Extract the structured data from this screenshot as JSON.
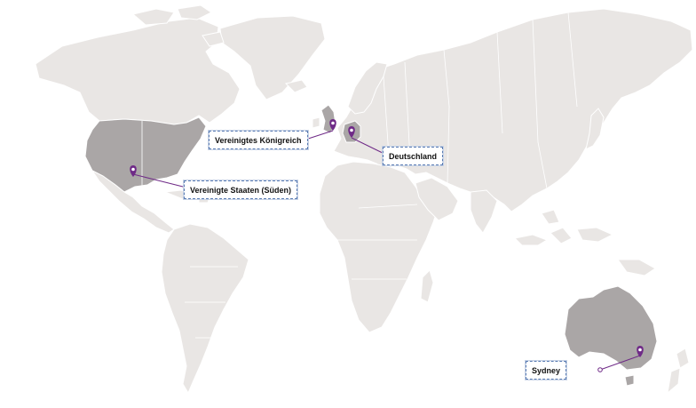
{
  "locations": [
    {
      "id": "uk",
      "label": "Vereinigtes Königreich"
    },
    {
      "id": "de",
      "label": "Deutschland"
    },
    {
      "id": "us",
      "label": "Vereinigte Staaten (Süden)"
    },
    {
      "id": "syd",
      "label": "Sydney"
    }
  ],
  "colors": {
    "land": "#e9e6e4",
    "highlight": "#aaa6a6",
    "pin": "#6f2a87",
    "label_border": "#5a7cb3"
  },
  "icons": {
    "pin": "map-pin-icon"
  }
}
